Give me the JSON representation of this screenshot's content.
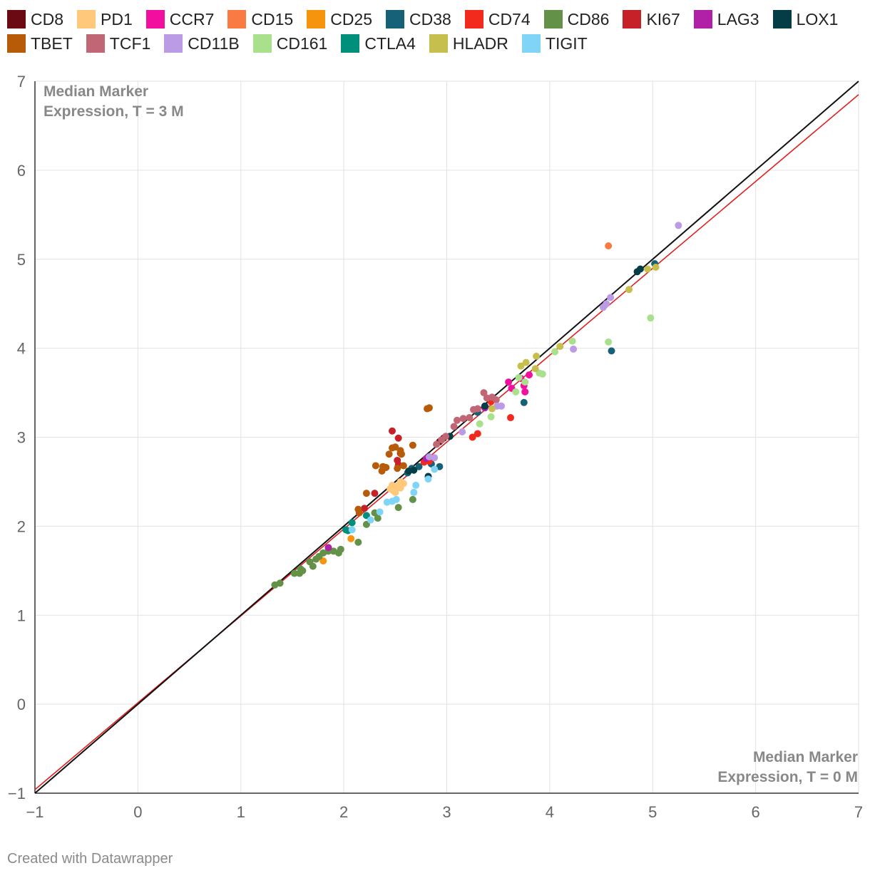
{
  "legend": [
    {
      "name": "CD8",
      "color": "#6b0a12"
    },
    {
      "name": "PD1",
      "color": "#ffc87a"
    },
    {
      "name": "CCR7",
      "color": "#f20fa0"
    },
    {
      "name": "CD15",
      "color": "#f97a42"
    },
    {
      "name": "CD25",
      "color": "#f7940e"
    },
    {
      "name": "CD38",
      "color": "#176178"
    },
    {
      "name": "CD74",
      "color": "#f22a1e"
    },
    {
      "name": "CD86",
      "color": "#629147"
    },
    {
      "name": "KI67",
      "color": "#c62129"
    },
    {
      "name": "LAG3",
      "color": "#b021a8"
    },
    {
      "name": "LOX1",
      "color": "#053d47"
    },
    {
      "name": "TBET",
      "color": "#b85b09"
    },
    {
      "name": "TCF1",
      "color": "#c06674"
    },
    {
      "name": "CD11B",
      "color": "#bb9be6"
    },
    {
      "name": "CD161",
      "color": "#a8e08c"
    },
    {
      "name": "CTLA4",
      "color": "#008f7a"
    },
    {
      "name": "HLADR",
      "color": "#c7bf4d"
    },
    {
      "name": "TIGIT",
      "color": "#80d4f7"
    }
  ],
  "footer": "Created with Datawrapper",
  "chart_data": {
    "type": "scatter",
    "ylabel": "Median Marker Expression, T = 3 M",
    "xlabel": "Median Marker Expression, T = 0 M",
    "xlim": [
      -1,
      7
    ],
    "ylim": [
      -1,
      7
    ],
    "xticks": [
      -1,
      0,
      1,
      2,
      3,
      4,
      5,
      6,
      7
    ],
    "yticks": [
      -1,
      0,
      1,
      2,
      3,
      4,
      5,
      6,
      7
    ],
    "grid": true,
    "legend_position": "top",
    "reference_lines": [
      {
        "name": "identity",
        "color": "#111111",
        "points": [
          [
            -1,
            -1
          ],
          [
            7,
            7
          ]
        ]
      },
      {
        "name": "fit",
        "color": "#e01f1f",
        "points": [
          [
            -1,
            -0.96
          ],
          [
            7,
            6.85
          ]
        ]
      }
    ],
    "series": [
      {
        "name": "CD8",
        "color": "#6b0a12",
        "points": [
          [
            2.93,
            2.95
          ],
          [
            2.95,
            2.97
          ],
          [
            2.97,
            2.99
          ]
        ]
      },
      {
        "name": "PD1",
        "color": "#ffc87a",
        "points": [
          [
            2.45,
            2.42
          ],
          [
            2.48,
            2.4
          ],
          [
            2.52,
            2.45
          ],
          [
            2.55,
            2.43
          ],
          [
            2.58,
            2.48
          ],
          [
            2.55,
            2.5
          ],
          [
            2.5,
            2.38
          ],
          [
            2.47,
            2.46
          ]
        ]
      },
      {
        "name": "CCR7",
        "color": "#f20fa0",
        "points": [
          [
            3.6,
            3.62
          ],
          [
            3.63,
            3.55
          ],
          [
            3.72,
            3.66
          ],
          [
            3.75,
            3.58
          ],
          [
            3.76,
            3.51
          ],
          [
            3.8,
            3.7
          ]
        ]
      },
      {
        "name": "CD15",
        "color": "#f97a42",
        "points": [
          [
            4.57,
            5.15
          ]
        ]
      },
      {
        "name": "CD25",
        "color": "#f7940e",
        "points": [
          [
            1.8,
            1.61
          ],
          [
            2.07,
            1.86
          ]
        ]
      },
      {
        "name": "CD38",
        "color": "#176178",
        "points": [
          [
            2.62,
            2.6
          ],
          [
            2.66,
            2.65
          ],
          [
            2.73,
            2.67
          ],
          [
            2.85,
            2.7
          ],
          [
            2.93,
            2.67
          ],
          [
            3.3,
            3.28
          ],
          [
            3.75,
            3.39
          ],
          [
            4.6,
            3.97
          ],
          [
            5.02,
            4.95
          ]
        ]
      },
      {
        "name": "CD74",
        "color": "#f22a1e",
        "points": [
          [
            2.78,
            2.72
          ],
          [
            2.83,
            2.73
          ],
          [
            3.25,
            3.0
          ],
          [
            3.3,
            3.04
          ],
          [
            3.62,
            3.22
          ],
          [
            3.43,
            3.4
          ]
        ]
      },
      {
        "name": "CD86",
        "color": "#629147",
        "points": [
          [
            1.33,
            1.34
          ],
          [
            1.38,
            1.36
          ],
          [
            1.52,
            1.47
          ],
          [
            1.57,
            1.47
          ],
          [
            1.58,
            1.52
          ],
          [
            1.6,
            1.5
          ],
          [
            1.67,
            1.6
          ],
          [
            1.7,
            1.55
          ],
          [
            1.73,
            1.63
          ],
          [
            1.76,
            1.66
          ],
          [
            1.8,
            1.7
          ],
          [
            1.85,
            1.72
          ],
          [
            1.9,
            1.72
          ],
          [
            1.95,
            1.7
          ],
          [
            1.97,
            1.74
          ],
          [
            2.14,
            1.82
          ],
          [
            2.22,
            2.02
          ],
          [
            2.3,
            2.15
          ],
          [
            2.33,
            2.09
          ],
          [
            2.53,
            2.21
          ],
          [
            2.67,
            2.3
          ]
        ]
      },
      {
        "name": "KI67",
        "color": "#c62129",
        "points": [
          [
            2.3,
            2.37
          ],
          [
            2.47,
            3.07
          ],
          [
            2.53,
            2.99
          ],
          [
            2.52,
            2.74
          ],
          [
            2.53,
            2.69
          ],
          [
            2.55,
            2.82
          ],
          [
            2.2,
            2.2
          ]
        ]
      },
      {
        "name": "LAG3",
        "color": "#b021a8",
        "points": [
          [
            1.85,
            1.76
          ],
          [
            2.8,
            2.76
          ],
          [
            3.37,
            3.33
          ]
        ]
      },
      {
        "name": "LOX1",
        "color": "#053d47",
        "points": [
          [
            2.63,
            2.62
          ],
          [
            2.68,
            2.63
          ],
          [
            2.82,
            2.56
          ],
          [
            3.03,
            3.01
          ],
          [
            3.37,
            3.35
          ],
          [
            4.85,
            4.86
          ],
          [
            4.88,
            4.89
          ]
        ]
      },
      {
        "name": "TBET",
        "color": "#b85b09",
        "points": [
          [
            2.14,
            2.19
          ],
          [
            2.15,
            2.15
          ],
          [
            2.22,
            2.37
          ],
          [
            2.31,
            2.68
          ],
          [
            2.37,
            2.62
          ],
          [
            2.38,
            2.67
          ],
          [
            2.41,
            2.66
          ],
          [
            2.44,
            2.81
          ],
          [
            2.47,
            2.88
          ],
          [
            2.5,
            2.89
          ],
          [
            2.52,
            2.65
          ],
          [
            2.55,
            2.85
          ],
          [
            2.56,
            2.81
          ],
          [
            2.58,
            2.68
          ],
          [
            2.67,
            2.91
          ],
          [
            2.81,
            3.32
          ],
          [
            2.83,
            3.33
          ]
        ]
      },
      {
        "name": "TCF1",
        "color": "#c06674",
        "points": [
          [
            2.9,
            2.92
          ],
          [
            2.95,
            2.97
          ],
          [
            2.99,
            3.01
          ],
          [
            3.07,
            3.12
          ],
          [
            3.1,
            3.19
          ],
          [
            3.16,
            3.21
          ],
          [
            3.22,
            3.22
          ],
          [
            3.26,
            3.31
          ],
          [
            3.3,
            3.32
          ],
          [
            3.36,
            3.5
          ],
          [
            3.39,
            3.44
          ],
          [
            3.44,
            3.45
          ],
          [
            3.48,
            3.42
          ]
        ]
      },
      {
        "name": "CD11B",
        "color": "#bb9be6",
        "points": [
          [
            2.83,
            2.78
          ],
          [
            2.88,
            2.77
          ],
          [
            3.15,
            3.06
          ],
          [
            3.49,
            3.35
          ],
          [
            3.53,
            3.35
          ],
          [
            4.23,
            3.99
          ],
          [
            4.52,
            4.46
          ],
          [
            4.55,
            4.5
          ],
          [
            4.59,
            4.57
          ],
          [
            5.25,
            5.38
          ]
        ]
      },
      {
        "name": "CD161",
        "color": "#a8e08c",
        "points": [
          [
            3.32,
            3.15
          ],
          [
            3.43,
            3.23
          ],
          [
            3.67,
            3.51
          ],
          [
            3.7,
            3.67
          ],
          [
            3.76,
            3.62
          ],
          [
            3.9,
            3.72
          ],
          [
            3.93,
            3.71
          ],
          [
            4.05,
            3.96
          ],
          [
            4.22,
            4.08
          ],
          [
            4.57,
            4.07
          ],
          [
            4.98,
            4.34
          ]
        ]
      },
      {
        "name": "CTLA4",
        "color": "#008f7a",
        "points": [
          [
            2.02,
            1.96
          ],
          [
            2.04,
            1.95
          ],
          [
            2.08,
            2.04
          ],
          [
            2.22,
            2.12
          ]
        ]
      },
      {
        "name": "HLADR",
        "color": "#c7bf4d",
        "points": [
          [
            3.44,
            3.32
          ],
          [
            3.72,
            3.8
          ],
          [
            3.77,
            3.84
          ],
          [
            3.86,
            3.77
          ],
          [
            3.87,
            3.91
          ],
          [
            4.1,
            4.02
          ],
          [
            4.77,
            4.66
          ],
          [
            4.95,
            4.89
          ],
          [
            5.03,
            4.91
          ]
        ]
      },
      {
        "name": "TIGIT",
        "color": "#80d4f7",
        "points": [
          [
            2.08,
            1.96
          ],
          [
            2.26,
            2.07
          ],
          [
            2.35,
            2.16
          ],
          [
            2.42,
            2.27
          ],
          [
            2.47,
            2.28
          ],
          [
            2.51,
            2.3
          ],
          [
            2.68,
            2.38
          ],
          [
            2.7,
            2.46
          ],
          [
            2.82,
            2.53
          ],
          [
            2.88,
            2.64
          ]
        ]
      }
    ]
  }
}
